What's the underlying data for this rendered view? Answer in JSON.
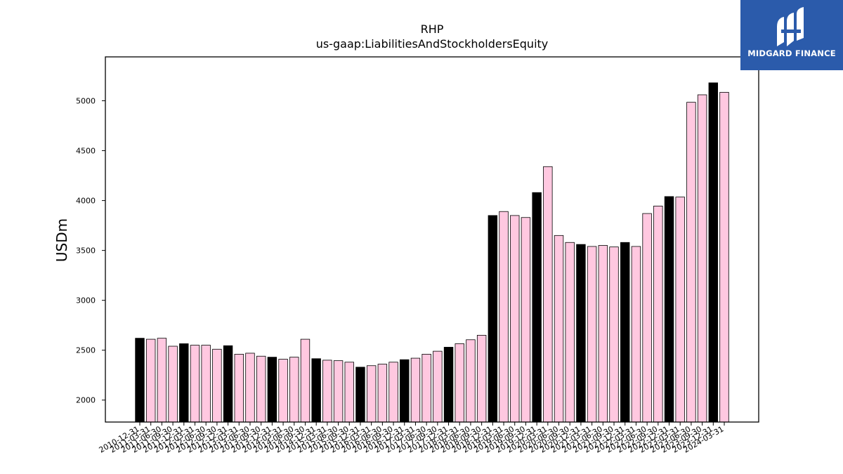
{
  "brand": {
    "name": "MIDGARD FINANCE",
    "bg_color": "#2b5bab"
  },
  "chart_data": {
    "type": "bar",
    "title": "RHP",
    "subtitle": "us-gaap:LiabilitiesAndStockholdersEquity",
    "xlabel": "",
    "ylabel": "USDm",
    "ylim": [
      1780,
      5440
    ],
    "yticks": [
      2000,
      2500,
      3000,
      3500,
      4000,
      4500,
      5000
    ],
    "grid": false,
    "colors": {
      "year_end": "#000000",
      "quarter": "#ffc8e0",
      "edge": "#000000"
    },
    "categories": [
      "2010-12-31",
      "2011-03-31",
      "2011-06-30",
      "2011-09-30",
      "2011-12-31",
      "2012-03-31",
      "2012-06-30",
      "2012-09-30",
      "2012-12-31",
      "2013-03-31",
      "2013-06-30",
      "2013-09-30",
      "2013-12-31",
      "2014-03-31",
      "2014-06-30",
      "2014-09-30",
      "2014-12-31",
      "2015-03-31",
      "2015-06-30",
      "2015-09-30",
      "2015-12-31",
      "2016-03-31",
      "2016-06-30",
      "2016-09-30",
      "2016-12-31",
      "2017-03-31",
      "2017-06-30",
      "2017-09-30",
      "2017-12-31",
      "2018-03-31",
      "2018-06-30",
      "2018-09-30",
      "2018-12-31",
      "2019-03-31",
      "2019-06-30",
      "2019-09-30",
      "2019-12-31",
      "2020-03-31",
      "2020-06-30",
      "2020-09-30",
      "2020-12-31",
      "2021-03-31",
      "2021-06-30",
      "2021-09-30",
      "2021-12-31",
      "2022-03-31",
      "2022-06-30",
      "2022-09-30",
      "2022-12-31",
      "2023-03-31",
      "2023-06-30",
      "2023-09-30",
      "2023-12-31",
      "2024-03-31"
    ],
    "values": [
      2620,
      2610,
      2620,
      2540,
      2565,
      2550,
      2550,
      2510,
      2545,
      2460,
      2470,
      2440,
      2430,
      2410,
      2430,
      2610,
      2415,
      2400,
      2395,
      2380,
      2330,
      2345,
      2360,
      2380,
      2405,
      2420,
      2460,
      2490,
      2530,
      2565,
      2605,
      2650,
      3850,
      3890,
      3850,
      3830,
      4080,
      4340,
      3650,
      3580,
      3560,
      3540,
      3550,
      3535,
      3580,
      3540,
      3870,
      3945,
      4040,
      4035,
      4985,
      5060,
      5180,
      5085
    ]
  }
}
